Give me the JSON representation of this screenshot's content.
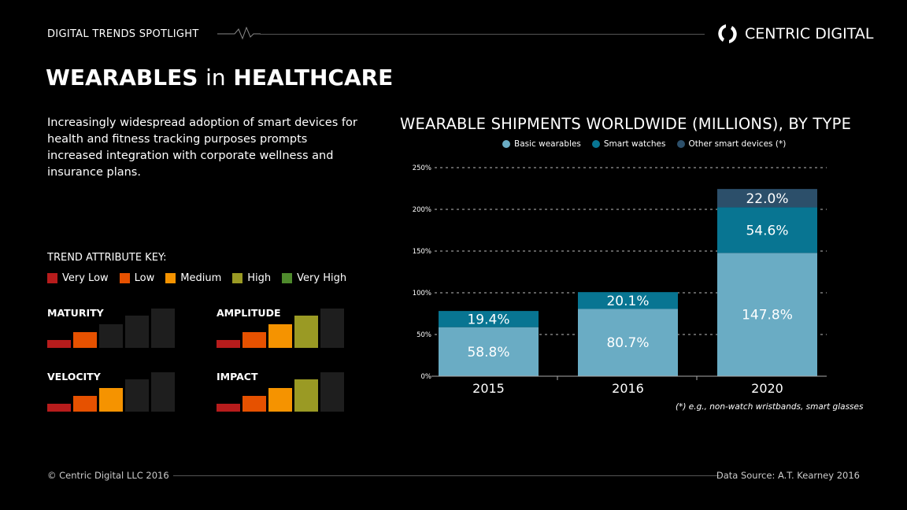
{
  "header": {
    "section": "DIGITAL TRENDS SPOTLIGHT",
    "brand": "CENTRIC DIGITAL"
  },
  "title": {
    "part1": "WEARABLES",
    "part2": "in",
    "part3": "HEALTHCARE"
  },
  "description": "Increasingly widespread adoption of smart devices for health and fitness tracking purposes prompts increased integration with corporate wellness and insurance plans.",
  "trend_key": {
    "title": "TREND ATTRIBUTE KEY:",
    "levels": [
      {
        "label": "Very Low",
        "color": "#b71c1c"
      },
      {
        "label": "Low",
        "color": "#e65100"
      },
      {
        "label": "Medium",
        "color": "#f59300"
      },
      {
        "label": "High",
        "color": "#9a9a24"
      },
      {
        "label": "Very High",
        "color": "#4e8a2c"
      }
    ],
    "inactive_color": "#1e1e1e",
    "attributes": [
      {
        "name": "MATURITY",
        "level": 2
      },
      {
        "name": "AMPLITUDE",
        "level": 4
      },
      {
        "name": "VELOCITY",
        "level": 3
      },
      {
        "name": "IMPACT",
        "level": 4
      }
    ]
  },
  "chart_data": {
    "type": "bar",
    "stacked": true,
    "title": "WEARABLE SHIPMENTS WORLDWIDE (MILLIONS), BY TYPE",
    "categories": [
      "2015",
      "2016",
      "2020"
    ],
    "series": [
      {
        "name": "Basic wearables",
        "color": "#6aacc4",
        "values": [
          58.8,
          80.7,
          147.8
        ],
        "labels": [
          "58.8%",
          "80.7%",
          "147.8%"
        ]
      },
      {
        "name": "Smart watches",
        "color": "#087592",
        "values": [
          19.4,
          20.1,
          54.6
        ],
        "labels": [
          "19.4%",
          "20.1%",
          "54.6%"
        ]
      },
      {
        "name": "Other smart devices (*)",
        "color": "#2c4f6a",
        "values": [
          0,
          0,
          22.0
        ],
        "labels": [
          "",
          "",
          "22.0%"
        ]
      }
    ],
    "yticks": [
      "0%",
      "50%",
      "100%",
      "150%",
      "200%",
      "250%"
    ],
    "ylim": [
      0,
      250
    ],
    "grid": true,
    "legend": "top",
    "footnote": "(*) e.g., non-watch wristbands, smart glasses"
  },
  "footer": {
    "copyright": "© Centric Digital LLC 2016",
    "source": "Data Source: A.T. Kearney 2016"
  }
}
